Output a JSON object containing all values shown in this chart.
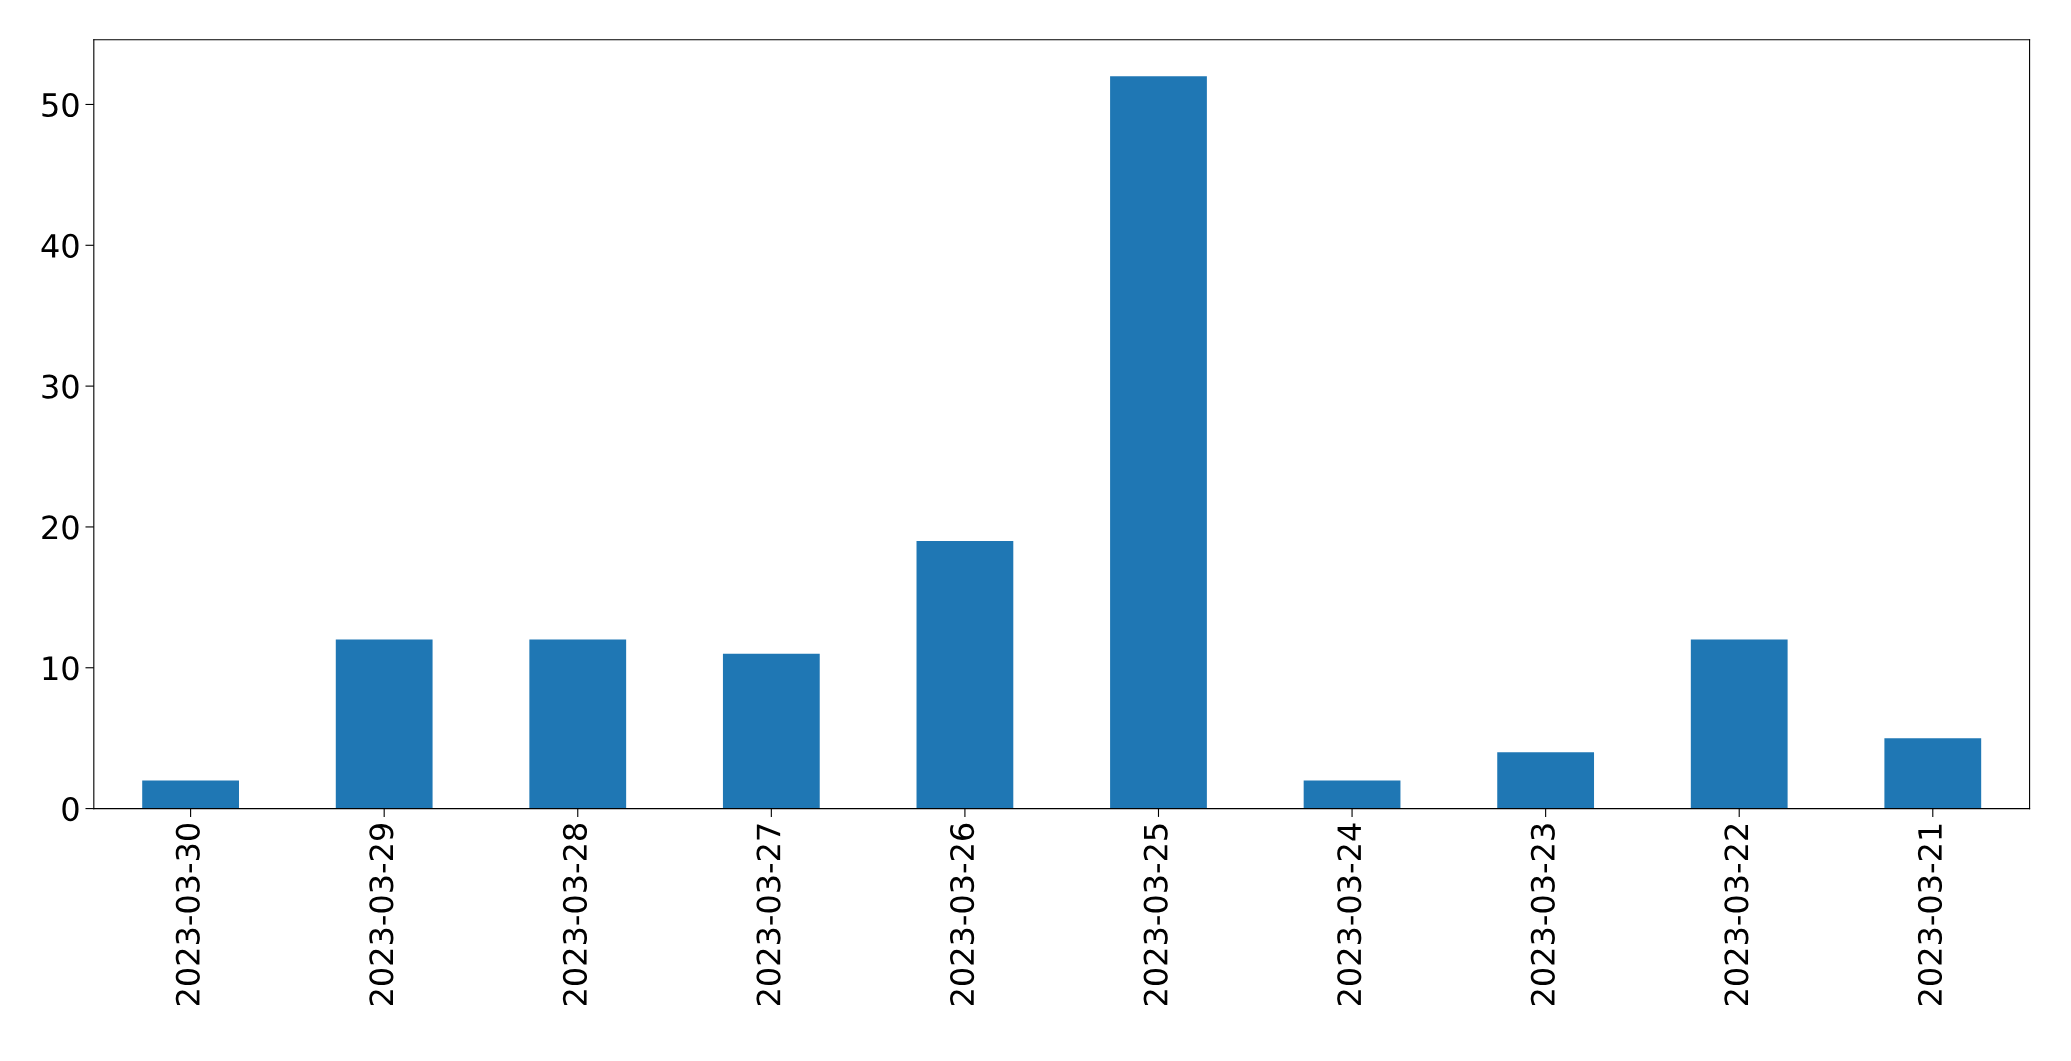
{
  "chart_data": {
    "type": "bar",
    "categories": [
      "2023-03-30",
      "2023-03-29",
      "2023-03-28",
      "2023-03-27",
      "2023-03-26",
      "2023-03-25",
      "2023-03-24",
      "2023-03-23",
      "2023-03-22",
      "2023-03-21"
    ],
    "values": [
      2,
      12,
      12,
      11,
      19,
      52,
      2,
      4,
      12,
      5
    ],
    "color": "#1f77b4",
    "ylim": [
      0,
      54.6
    ],
    "yticks": [
      0,
      10,
      20,
      30,
      40,
      50
    ],
    "grid": false,
    "legend": false
  }
}
